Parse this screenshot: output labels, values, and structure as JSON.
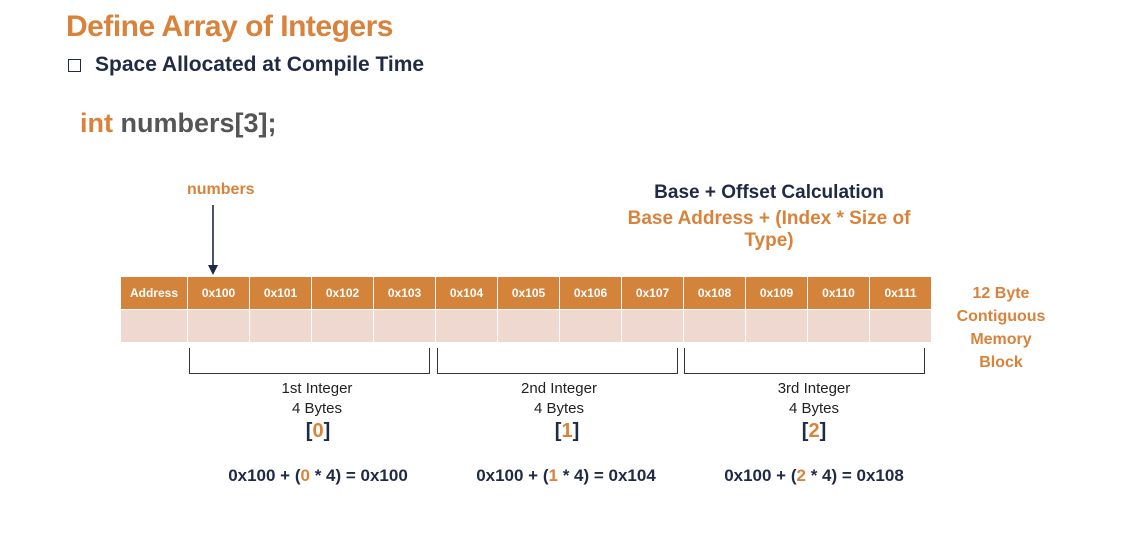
{
  "slide": {
    "title": "Define Array of Integers",
    "subtitle": "Space Allocated at Compile Time",
    "code": {
      "keyword": "int",
      "rest": " numbers[3];"
    }
  },
  "pointer": {
    "label": "numbers"
  },
  "calculation": {
    "title": "Base + Offset Calculation",
    "formula": "Base Address + (Index * Size of Type)"
  },
  "memory": {
    "row_label": "Address",
    "addresses": [
      "0x100",
      "0x101",
      "0x102",
      "0x103",
      "0x104",
      "0x105",
      "0x106",
      "0x107",
      "0x108",
      "0x109",
      "0x110",
      "0x111"
    ],
    "block_label_lines": [
      "12 Byte",
      "Contiguous",
      "Memory",
      "Block"
    ]
  },
  "integers": [
    {
      "name": "1st Integer",
      "size": "4 Bytes",
      "index": "0",
      "calc_prefix": "0x100 + (",
      "calc_index": "0",
      "calc_suffix": " * 4) = 0x100"
    },
    {
      "name": "2nd Integer",
      "size": "4 Bytes",
      "index": "1",
      "calc_prefix": "0x100 + (",
      "calc_index": "1",
      "calc_suffix": " * 4) = 0x104"
    },
    {
      "name": "3rd Integer",
      "size": "4 Bytes",
      "index": "2",
      "calc_prefix": "0x100 + (",
      "calc_index": "2",
      "calc_suffix": " * 4) = 0x108"
    }
  ],
  "colors": {
    "accent": "#d9823b",
    "header_fill": "#d4833a",
    "cell_fill": "#efd8d0",
    "dark_text": "#1f2a44"
  },
  "icons": {
    "bullet": "checkbox-icon",
    "pointer": "down-arrow-icon"
  }
}
